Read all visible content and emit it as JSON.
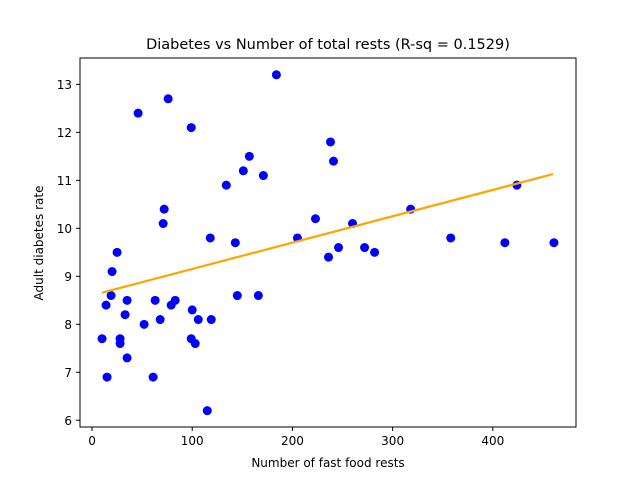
{
  "chart_data": {
    "type": "scatter",
    "title": "Diabetes vs Number of total rests (R-sq = 0.1529)",
    "xlabel": "Number of fast food rests",
    "ylabel": "Adult diabetes rate",
    "xlim": [
      -12,
      483
    ],
    "ylim": [
      5.86,
      13.55
    ],
    "xticks": [
      0,
      100,
      200,
      300,
      400
    ],
    "yticks": [
      6,
      7,
      8,
      9,
      10,
      11,
      12,
      13
    ],
    "grid": false,
    "legend": "none",
    "point_color": "#0000ff",
    "line_color": "#ffa500",
    "points": [
      [
        10,
        7.7
      ],
      [
        14,
        8.4
      ],
      [
        15,
        6.9
      ],
      [
        19,
        8.6
      ],
      [
        20,
        9.1
      ],
      [
        25,
        9.5
      ],
      [
        28,
        7.7
      ],
      [
        28,
        7.6
      ],
      [
        33,
        8.2
      ],
      [
        35,
        8.5
      ],
      [
        35,
        7.3
      ],
      [
        46,
        12.4
      ],
      [
        52,
        8.0
      ],
      [
        61,
        6.9
      ],
      [
        63,
        8.5
      ],
      [
        68,
        8.1
      ],
      [
        71,
        10.1
      ],
      [
        72,
        10.4
      ],
      [
        76,
        12.7
      ],
      [
        79,
        8.4
      ],
      [
        83,
        8.5
      ],
      [
        99,
        12.1
      ],
      [
        99,
        7.7
      ],
      [
        100,
        8.3
      ],
      [
        103,
        7.6
      ],
      [
        106,
        8.1
      ],
      [
        115,
        6.2
      ],
      [
        118,
        9.8
      ],
      [
        119,
        8.1
      ],
      [
        134,
        10.9
      ],
      [
        143,
        9.7
      ],
      [
        145,
        8.6
      ],
      [
        151,
        11.2
      ],
      [
        157,
        11.5
      ],
      [
        166,
        8.6
      ],
      [
        171,
        11.1
      ],
      [
        184,
        13.2
      ],
      [
        205,
        9.8
      ],
      [
        223,
        10.2
      ],
      [
        236,
        9.4
      ],
      [
        238,
        11.8
      ],
      [
        241,
        11.4
      ],
      [
        246,
        9.6
      ],
      [
        260,
        10.1
      ],
      [
        272,
        9.6
      ],
      [
        282,
        9.5
      ],
      [
        318,
        10.4
      ],
      [
        358,
        9.8
      ],
      [
        412,
        9.7
      ],
      [
        424,
        10.9
      ],
      [
        461,
        9.7
      ]
    ],
    "fit_line": [
      [
        10,
        8.66
      ],
      [
        460,
        11.13
      ]
    ]
  }
}
